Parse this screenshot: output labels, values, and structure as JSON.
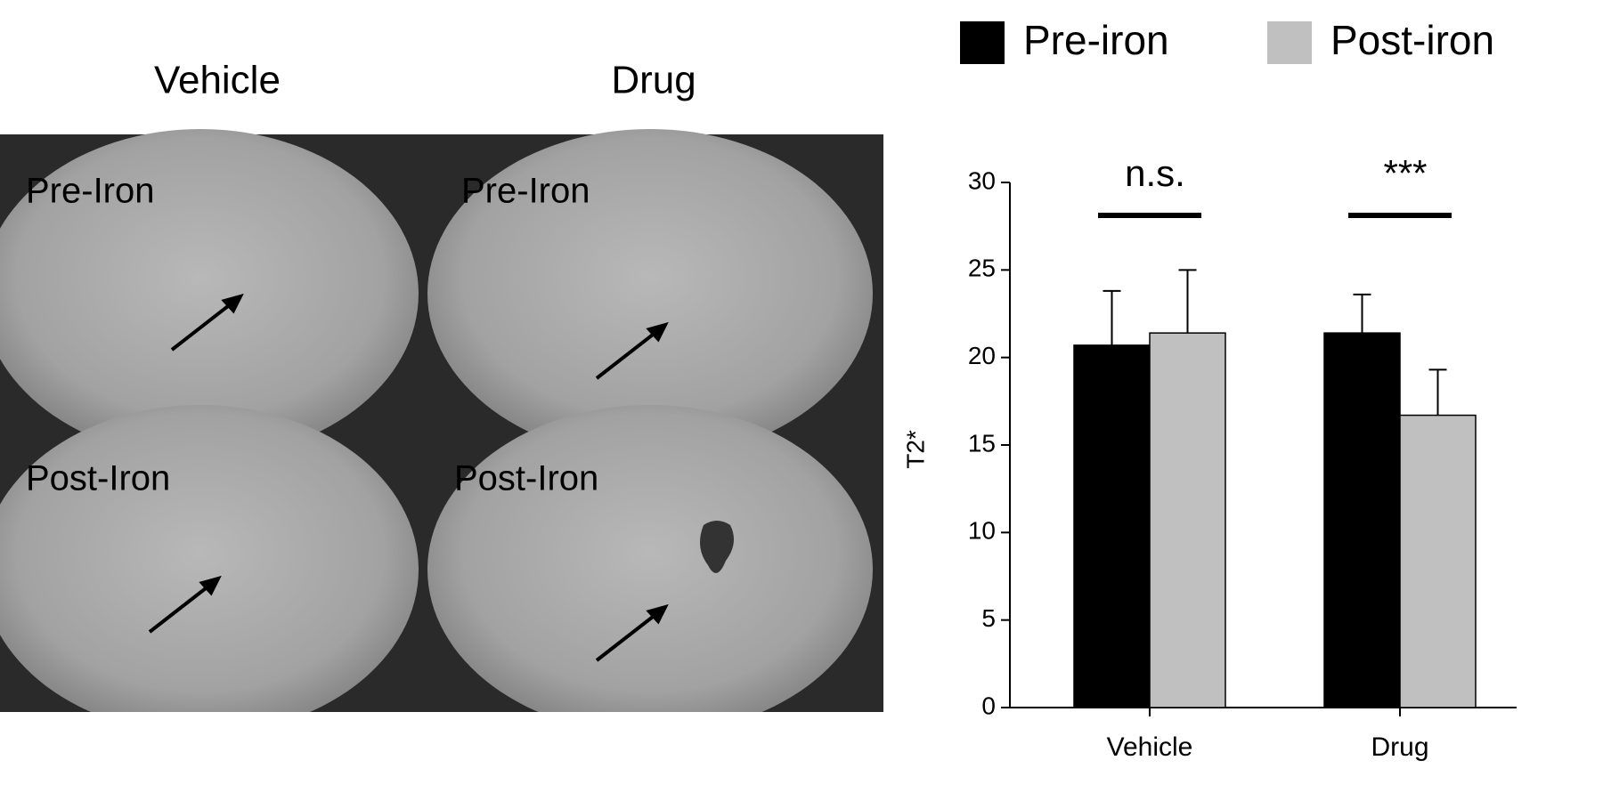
{
  "images": {
    "columns": [
      "Vehicle",
      "Drug"
    ],
    "rows": [
      [
        "Pre-Iron",
        "Pre-Iron"
      ],
      [
        "Post-Iron",
        "Post-Iron"
      ]
    ]
  },
  "chart_data": {
    "type": "bar",
    "ylabel": "T2*",
    "categories": [
      "Vehicle",
      "Drug"
    ],
    "series": [
      {
        "name": "Pre-iron",
        "color": "#000000",
        "values": [
          20.7,
          21.4
        ],
        "errors": [
          3.1,
          2.2
        ]
      },
      {
        "name": "Post-iron",
        "color": "#c0c0c0",
        "values": [
          21.4,
          16.7
        ],
        "errors": [
          3.6,
          2.6
        ]
      }
    ],
    "annotations": [
      "n.s.",
      "***"
    ],
    "ylim": [
      0,
      30
    ],
    "yticks": [
      0,
      5,
      10,
      15,
      20,
      25,
      30
    ],
    "grid": false
  }
}
